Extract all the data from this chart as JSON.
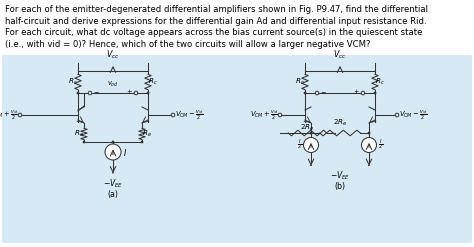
{
  "bg_color": "#d6e9f5",
  "white_bg": "#ffffff",
  "line_color": "#333333",
  "text_color": "#000000",
  "fig_width": 4.74,
  "fig_height": 2.47,
  "dpi": 100,
  "text_lines": [
    "For each of the emitter-degenerated differential amplifiers shown in Fig. P9.47, find the differential",
    "half-circuit and derive expressions for the differential gain Ad and differential input resistance Rid.",
    "For each circuit, what dc voltage appears across the bias current source(s) in the quiescent state",
    "(i.e., with vid = 0)? Hence, which of the two circuits will allow a larger negative VCM?"
  ]
}
